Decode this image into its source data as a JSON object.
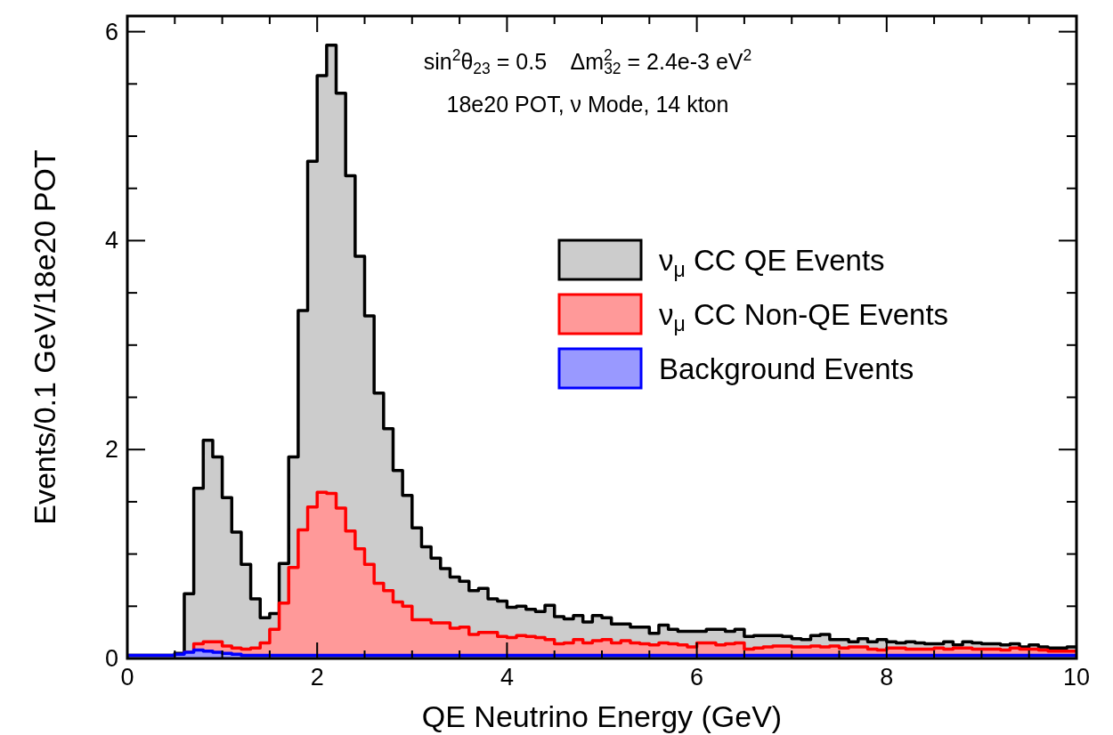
{
  "chart_data": {
    "type": "histogram",
    "xlabel": "QE Neutrino Energy (GeV)",
    "ylabel": "Events/0.1 GeV/18e20 POT",
    "annotations": [
      "sin$^{2}$θ$_{23}$ = 0.5    Δm$^{2}$$_{32}$ = 2.4e-3 eV$^{2}$",
      "18e20 POT, ν Mode, 14 kton"
    ],
    "bins": [
      0,
      0.1,
      0.2,
      0.3,
      0.4,
      0.5,
      0.6,
      0.7,
      0.8,
      0.9,
      1,
      1.1,
      1.2,
      1.3,
      1.4,
      1.5,
      1.6,
      1.7,
      1.8,
      1.9,
      2,
      2.1,
      2.2,
      2.3,
      2.4,
      2.5,
      2.6,
      2.7,
      2.8,
      2.9,
      3,
      3.1,
      3.2,
      3.3,
      3.4,
      3.5,
      3.6,
      3.7,
      3.8,
      3.9,
      4,
      4.1,
      4.2,
      4.3,
      4.4,
      4.5,
      4.6,
      4.7,
      4.8,
      4.9,
      5,
      5.1,
      5.2,
      5.3,
      5.4,
      5.5,
      5.6,
      5.7,
      5.8,
      5.9,
      6,
      6.1,
      6.2,
      6.3,
      6.4,
      6.5,
      6.6,
      6.7,
      6.8,
      6.9,
      7,
      7.1,
      7.2,
      7.3,
      7.4,
      7.5,
      7.6,
      7.7,
      7.8,
      7.9,
      8,
      8.1,
      8.2,
      8.3,
      8.4,
      8.5,
      8.6,
      8.7,
      8.8,
      8.9,
      9,
      9.1,
      9.2,
      9.3,
      9.4,
      9.5,
      9.6,
      9.7,
      9.8,
      9.9,
      10
    ],
    "series": [
      {
        "name": "ν$_{μ}$ CC QE Events",
        "color": "#cccccc",
        "values": [
          0.03,
          0.03,
          0.03,
          0.03,
          0.03,
          0.05,
          0.62,
          1.63,
          2.09,
          1.93,
          1.54,
          1.21,
          0.9,
          0.57,
          0.39,
          0.43,
          0.91,
          1.93,
          3.33,
          4.76,
          5.58,
          5.87,
          5.41,
          4.62,
          3.85,
          3.28,
          2.54,
          2.2,
          1.8,
          1.56,
          1.25,
          1.07,
          0.96,
          0.86,
          0.78,
          0.74,
          0.65,
          0.67,
          0.57,
          0.55,
          0.49,
          0.5,
          0.47,
          0.45,
          0.51,
          0.4,
          0.38,
          0.41,
          0.35,
          0.41,
          0.39,
          0.33,
          0.33,
          0.3,
          0.3,
          0.24,
          0.32,
          0.28,
          0.26,
          0.26,
          0.26,
          0.28,
          0.28,
          0.26,
          0.28,
          0.21,
          0.22,
          0.22,
          0.22,
          0.21,
          0.19,
          0.18,
          0.22,
          0.23,
          0.18,
          0.18,
          0.16,
          0.19,
          0.16,
          0.18,
          0.16,
          0.15,
          0.16,
          0.15,
          0.14,
          0.14,
          0.16,
          0.13,
          0.16,
          0.15,
          0.14,
          0.14,
          0.13,
          0.14,
          0.11,
          0.13,
          0.11,
          0.1,
          0.1,
          0.11
        ]
      },
      {
        "name": "ν$_{μ}$ CC Non-QE Events",
        "color": "#ff9999",
        "values": [
          0.02,
          0.02,
          0.02,
          0.02,
          0.02,
          0.03,
          0.06,
          0.14,
          0.16,
          0.16,
          0.12,
          0.1,
          0.09,
          0.1,
          0.15,
          0.28,
          0.53,
          0.87,
          1.23,
          1.45,
          1.59,
          1.58,
          1.44,
          1.22,
          1.05,
          0.9,
          0.72,
          0.65,
          0.54,
          0.5,
          0.37,
          0.37,
          0.34,
          0.34,
          0.29,
          0.3,
          0.23,
          0.25,
          0.25,
          0.21,
          0.2,
          0.22,
          0.21,
          0.2,
          0.18,
          0.14,
          0.15,
          0.18,
          0.15,
          0.17,
          0.18,
          0.15,
          0.17,
          0.15,
          0.14,
          0.13,
          0.15,
          0.14,
          0.13,
          0.11,
          0.15,
          0.15,
          0.13,
          0.14,
          0.15,
          0.09,
          0.1,
          0.11,
          0.12,
          0.12,
          0.11,
          0.11,
          0.12,
          0.11,
          0.12,
          0.1,
          0.11,
          0.11,
          0.09,
          0.08,
          0.1,
          0.1,
          0.09,
          0.09,
          0.09,
          0.1,
          0.09,
          0.1,
          0.1,
          0.09,
          0.09,
          0.09,
          0.08,
          0.1,
          0.09,
          0.09,
          0.08,
          0.07,
          0.07,
          0.07
        ]
      },
      {
        "name": "Background Events",
        "color": "#9999ff",
        "values": [
          0.03,
          0.03,
          0.03,
          0.03,
          0.03,
          0.04,
          0.06,
          0.08,
          0.07,
          0.06,
          0.05,
          0.04,
          0.03,
          0.03,
          0.03,
          0.03,
          0.03,
          0.03,
          0.03,
          0.03,
          0.03,
          0.03,
          0.03,
          0.03,
          0.03,
          0.03,
          0.03,
          0.03,
          0.03,
          0.03,
          0.03,
          0.03,
          0.03,
          0.03,
          0.03,
          0.03,
          0.03,
          0.03,
          0.03,
          0.03,
          0.03,
          0.03,
          0.03,
          0.03,
          0.03,
          0.03,
          0.03,
          0.03,
          0.03,
          0.03,
          0.03,
          0.03,
          0.03,
          0.03,
          0.03,
          0.03,
          0.03,
          0.03,
          0.03,
          0.03,
          0.03,
          0.03,
          0.03,
          0.03,
          0.03,
          0.03,
          0.03,
          0.03,
          0.03,
          0.03,
          0.03,
          0.03,
          0.03,
          0.03,
          0.03,
          0.03,
          0.03,
          0.03,
          0.03,
          0.03,
          0.03,
          0.03,
          0.03,
          0.03,
          0.03,
          0.03,
          0.03,
          0.03,
          0.03,
          0.03,
          0.03,
          0.03,
          0.03,
          0.03,
          0.03,
          0.03,
          0.03,
          0.03,
          0.03,
          0.03
        ]
      }
    ],
    "xlim": [
      0,
      10
    ],
    "xticks": [
      0,
      {
        "value": 0.5,
        "label": null
      },
      {
        "value": 1,
        "label": null
      },
      {
        "value": 1.5,
        "label": null
      },
      2,
      {
        "value": 2.5,
        "label": null
      },
      {
        "value": 3,
        "label": null
      },
      {
        "value": 3.5,
        "label": null
      },
      4,
      {
        "value": 4.5,
        "label": null
      },
      {
        "value": 5,
        "label": null
      },
      {
        "value": 5.5,
        "label": null
      },
      6,
      {
        "value": 6.5,
        "label": null
      },
      {
        "value": 7,
        "label": null
      },
      {
        "value": 7.5,
        "label": null
      },
      8,
      {
        "value": 8.5,
        "label": null
      },
      {
        "value": 9,
        "label": null
      },
      {
        "value": 9.5,
        "label": null
      },
      10
    ],
    "ylim": [
      0,
      6.15
    ],
    "yticks": [
      0,
      {
        "value": 0.5,
        "label": null
      },
      {
        "value": 1,
        "label": null
      },
      {
        "value": 1.5,
        "label": null
      },
      2,
      {
        "value": 2.5,
        "label": null
      },
      {
        "value": 3,
        "label": null
      },
      {
        "value": 3.5,
        "label": null
      },
      4,
      {
        "value": 4.5,
        "label": null
      },
      {
        "value": 5,
        "label": null
      },
      {
        "value": 5.5,
        "label": null
      },
      6
    ],
    "grid": false,
    "legend": "right"
  }
}
